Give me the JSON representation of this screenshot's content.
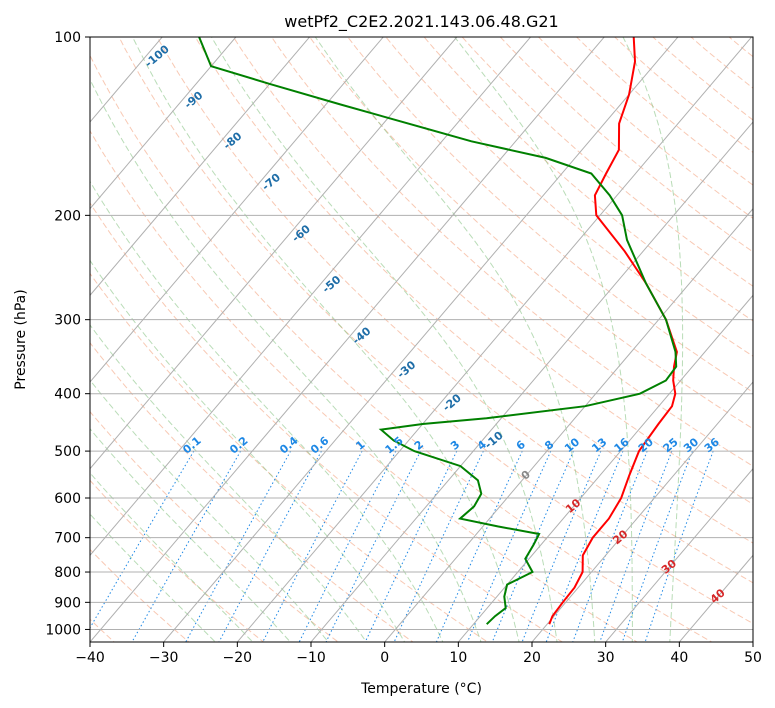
{
  "chart_data": {
    "type": "line",
    "title": "wetPf2_C2E2.2021.143.06.48.G21",
    "xlabel": "Temperature (°C)",
    "ylabel": "Pressure (hPa)",
    "xlim": [
      -40,
      50
    ],
    "ylim": [
      1050,
      100
    ],
    "y_scale": "log",
    "x_ticks": [
      -40,
      -30,
      -20,
      -10,
      0,
      10,
      20,
      30,
      40,
      50
    ],
    "y_ticks": [
      100,
      200,
      300,
      400,
      500,
      600,
      700,
      800,
      900,
      1000
    ],
    "grid": true,
    "colors": {
      "temperature": "#ff0000",
      "dewpoint": "#008000",
      "dry_adiabats": "#f4a582",
      "moist_adiabats": "#7fbf7b",
      "mixing_ratio": "#1e88e5",
      "isotherms": "#b0b0b0",
      "isotherm_labels": "#d62728",
      "moist_labels": "#1f6ea8"
    },
    "series": [
      {
        "pressure": [
          980,
          950,
          900,
          850,
          800,
          750,
          700,
          650,
          600,
          550,
          500,
          450,
          420,
          400,
          380,
          360,
          340,
          300,
          260,
          230,
          200,
          185,
          170,
          155,
          140,
          125,
          110,
          100
        ],
        "temperature": [
          20.3,
          19.8,
          19.6,
          19.5,
          18.8,
          16.9,
          16.2,
          16.2,
          15.5,
          14.0,
          12.5,
          12.0,
          11.8,
          10.8,
          9.0,
          7.5,
          6.2,
          1.0,
          -6.0,
          -12.5,
          -20.5,
          -23.0,
          -24.0,
          -25.0,
          -28.0,
          -30.0,
          -33.0,
          -36.0
        ]
      },
      {
        "pressure": [
          980,
          950,
          920,
          880,
          840,
          800,
          760,
          720,
          690,
          670,
          650,
          620,
          590,
          560,
          530,
          500,
          480,
          460,
          450,
          440,
          420,
          400,
          380,
          360,
          340,
          300,
          260,
          220,
          200,
          185,
          170,
          160,
          150,
          130,
          120,
          112,
          100
        ],
        "dewpoint": [
          11.8,
          12.0,
          12.5,
          11.0,
          10.0,
          12.0,
          9.5,
          9.0,
          8.5,
          2.0,
          -4.0,
          -3.5,
          -4.0,
          -6.0,
          -10.0,
          -18.0,
          -22.0,
          -25.0,
          -20.0,
          -12.0,
          0.0,
          6.0,
          8.0,
          7.8,
          6.0,
          1.0,
          -6.0,
          -13.5,
          -17.0,
          -21.0,
          -26.0,
          -34.0,
          -46.0,
          -68.0,
          -80.0,
          -90.0,
          -95.0
        ]
      }
    ],
    "isotherm_labels": [
      "0",
      "10",
      "20",
      "30",
      "40"
    ],
    "moist_adiabat_labels": [
      "-100",
      "-90",
      "-80",
      "-70",
      "-60",
      "-50",
      "-40",
      "-30",
      "-20",
      "-10"
    ],
    "mixing_ratio_labels": [
      "0.1",
      "0.2",
      "0.4",
      "0.6",
      "1",
      "1.5",
      "2",
      "3",
      "4",
      "6",
      "8",
      "10",
      "13",
      "16",
      "20",
      "25",
      "30",
      "36"
    ]
  }
}
